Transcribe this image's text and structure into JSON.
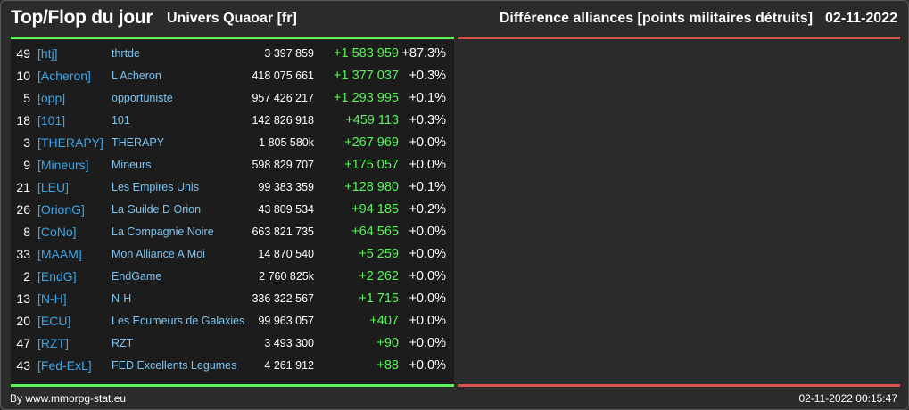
{
  "header": {
    "title": "Top/Flop du jour",
    "universe": "Univers Quaoar [fr]",
    "description": "Différence alliances [points militaires détruits]",
    "date": "02-11-2022"
  },
  "colors": {
    "top_line": "#5cf35c",
    "flop_line": "#d9534f",
    "tag": "#3aa6e8",
    "gain": "#5cf35c"
  },
  "top_rows": [
    {
      "rank": "49",
      "tag": "[htj]",
      "name": "thrtde",
      "points": "3 397 859",
      "diff": "+1 583 959",
      "pct": "+87.3%"
    },
    {
      "rank": "10",
      "tag": "[Acheron]",
      "name": "L Acheron",
      "points": "418 075 661",
      "diff": "+1 377 037",
      "pct": "+0.3%"
    },
    {
      "rank": "5",
      "tag": "[opp]",
      "name": "opportuniste",
      "points": "957 426 217",
      "diff": "+1 293 995",
      "pct": "+0.1%"
    },
    {
      "rank": "18",
      "tag": "[101]",
      "name": "101",
      "points": "142 826 918",
      "diff": "+459 113",
      "pct": "+0.3%"
    },
    {
      "rank": "3",
      "tag": "[THERAPY]",
      "name": "THERAPY",
      "points": "1 805 580k",
      "diff": "+267 969",
      "pct": "+0.0%"
    },
    {
      "rank": "9",
      "tag": "[Mineurs]",
      "name": "Mineurs",
      "points": "598 829 707",
      "diff": "+175 057",
      "pct": "+0.0%"
    },
    {
      "rank": "21",
      "tag": "[LEU]",
      "name": "Les Empires Unis",
      "points": "99 383 359",
      "diff": "+128 980",
      "pct": "+0.1%"
    },
    {
      "rank": "26",
      "tag": "[OrionG]",
      "name": "La Guilde D Orion",
      "points": "43 809 534",
      "diff": "+94 185",
      "pct": "+0.2%"
    },
    {
      "rank": "8",
      "tag": "[CoNo]",
      "name": "La Compagnie Noire",
      "points": "663 821 735",
      "diff": "+64 565",
      "pct": "+0.0%"
    },
    {
      "rank": "33",
      "tag": "[MAAM]",
      "name": "Mon Alliance A Moi",
      "points": "14 870 540",
      "diff": "+5 259",
      "pct": "+0.0%"
    },
    {
      "rank": "2",
      "tag": "[EndG]",
      "name": "EndGame",
      "points": "2 760 825k",
      "diff": "+2 262",
      "pct": "+0.0%"
    },
    {
      "rank": "13",
      "tag": "[N-H]",
      "name": "N-H",
      "points": "336 322 567",
      "diff": "+1 715",
      "pct": "+0.0%"
    },
    {
      "rank": "20",
      "tag": "[ECU]",
      "name": "Les Ecumeurs de Galaxies",
      "points": "99 963 057",
      "diff": "+407",
      "pct": "+0.0%"
    },
    {
      "rank": "47",
      "tag": "[RZT]",
      "name": "RZT",
      "points": "3 493 300",
      "diff": "+90",
      "pct": "+0.0%"
    },
    {
      "rank": "43",
      "tag": "[Fed-ExL]",
      "name": "FED Excellents Legumes",
      "points": "4 261 912",
      "diff": "+88",
      "pct": "+0.0%"
    }
  ],
  "footer": {
    "credit": "By www.mmorpg-stat.eu",
    "timestamp": "02-11-2022 00:15:47"
  }
}
